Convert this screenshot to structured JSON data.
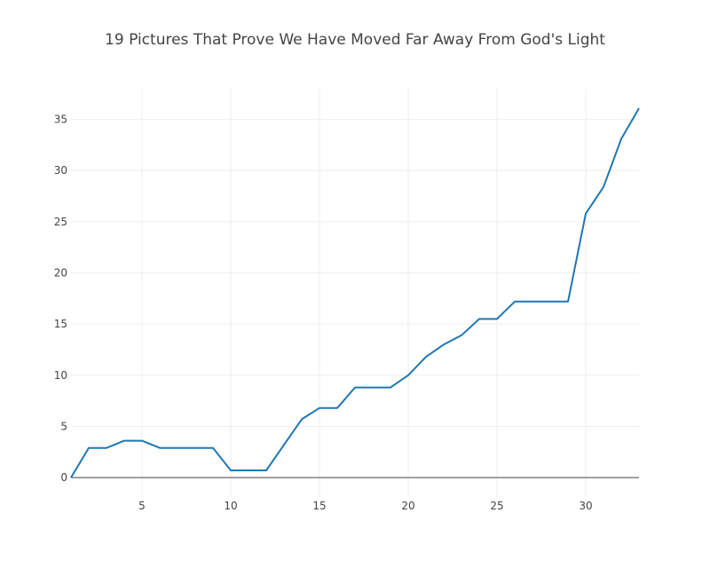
{
  "chart_data": {
    "type": "line",
    "title": "19 Pictures That Prove We Have Moved Far Away From God's Light",
    "xlabel": "",
    "ylabel": "",
    "xlim": [
      1,
      33
    ],
    "ylim": [
      -1.9,
      38
    ],
    "x_ticks": [
      5,
      10,
      15,
      20,
      25,
      30
    ],
    "y_ticks": [
      0,
      5,
      10,
      15,
      20,
      25,
      30,
      35
    ],
    "grid": true,
    "line_color": "#1f77b4",
    "series": [
      {
        "x": [
          1,
          2,
          3,
          4,
          5,
          6,
          7,
          8,
          9,
          10,
          11,
          12,
          13,
          14,
          15,
          16,
          17,
          18,
          19,
          20,
          21,
          22,
          23,
          24,
          25,
          26,
          27,
          28,
          29,
          30,
          31,
          32,
          33
        ],
        "values": [
          0,
          2.9,
          2.9,
          3.6,
          3.6,
          2.9,
          2.9,
          2.9,
          2.9,
          0.7,
          0.7,
          0.7,
          3.2,
          5.7,
          6.8,
          6.8,
          8.8,
          8.8,
          8.8,
          10.0,
          11.8,
          13.0,
          13.9,
          15.5,
          15.5,
          17.2,
          17.2,
          17.2,
          17.2,
          25.8,
          28.4,
          33.1,
          36.1
        ]
      }
    ]
  }
}
